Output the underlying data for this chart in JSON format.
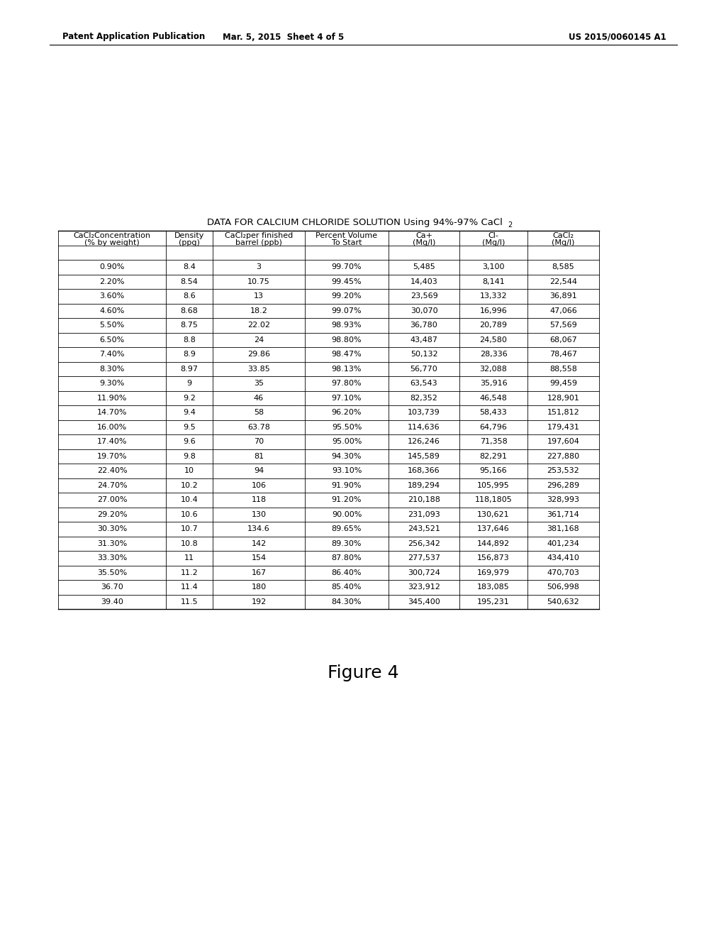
{
  "header_left": "Patent Application Publication",
  "header_mid": "Mar. 5, 2015  Sheet 4 of 5",
  "header_right": "US 2015/0060145 A1",
  "table_title_main": "DATA FOR CALCIUM CHLORIDE SOLUTION Using 94%-97% CaCl",
  "table_title_sub": "2",
  "figure_label": "Figure 4",
  "col_headers_line1": [
    "CaCl₂Concentration",
    "Density",
    "CaCl₂per finished",
    "Percent Volume",
    "Ca+",
    "Cl-",
    "CaCl₂"
  ],
  "col_headers_line2": [
    "(% by weight)",
    "(ppg)",
    "barrel (ppb)",
    "To Start",
    "(Mg/l)",
    "(Mg/l)",
    "(Mg/l)"
  ],
  "rows": [
    [
      "0.90%",
      "8.4",
      "3",
      "99.70%",
      "5,485",
      "3,100",
      "8,585"
    ],
    [
      "2.20%",
      "8.54",
      "10.75",
      "99.45%",
      "14,403",
      "8,141",
      "22,544"
    ],
    [
      "3.60%",
      "8.6",
      "13",
      "99.20%",
      "23,569",
      "13,332",
      "36,891"
    ],
    [
      "4.60%",
      "8.68",
      "18.2",
      "99.07%",
      "30,070",
      "16,996",
      "47,066"
    ],
    [
      "5.50%",
      "8.75",
      "22.02",
      "98.93%",
      "36,780",
      "20,789",
      "57,569"
    ],
    [
      "6.50%",
      "8.8",
      "24",
      "98.80%",
      "43,487",
      "24,580",
      "68,067"
    ],
    [
      "7.40%",
      "8.9",
      "29.86",
      "98.47%",
      "50,132",
      "28,336",
      "78,467"
    ],
    [
      "8.30%",
      "8.97",
      "33.85",
      "98.13%",
      "56,770",
      "32,088",
      "88,558"
    ],
    [
      "9.30%",
      "9",
      "35",
      "97.80%",
      "63,543",
      "35,916",
      "99,459"
    ],
    [
      "11.90%",
      "9.2",
      "46",
      "97.10%",
      "82,352",
      "46,548",
      "128,901"
    ],
    [
      "14.70%",
      "9.4",
      "58",
      "96.20%",
      "103,739",
      "58,433",
      "151,812"
    ],
    [
      "16.00%",
      "9.5",
      "63.78",
      "95.50%",
      "114,636",
      "64,796",
      "179,431"
    ],
    [
      "17.40%",
      "9.6",
      "70",
      "95.00%",
      "126,246",
      "71,358",
      "197,604"
    ],
    [
      "19.70%",
      "9.8",
      "81",
      "94.30%",
      "145,589",
      "82,291",
      "227,880"
    ],
    [
      "22.40%",
      "10",
      "94",
      "93.10%",
      "168,366",
      "95,166",
      "253,532"
    ],
    [
      "24.70%",
      "10.2",
      "106",
      "91.90%",
      "189,294",
      "105,995",
      "296,289"
    ],
    [
      "27.00%",
      "10.4",
      "118",
      "91.20%",
      "210,188",
      "118,1805",
      "328,993"
    ],
    [
      "29.20%",
      "10.6",
      "130",
      "90.00%",
      "231,093",
      "130,621",
      "361,714"
    ],
    [
      "30.30%",
      "10.7",
      "134.6",
      "89.65%",
      "243,521",
      "137,646",
      "381,168"
    ],
    [
      "31.30%",
      "10.8",
      "142",
      "89.30%",
      "256,342",
      "144,892",
      "401,234"
    ],
    [
      "33.30%",
      "11",
      "154",
      "87.80%",
      "277,537",
      "156,873",
      "434,410"
    ],
    [
      "35.50%",
      "11.2",
      "167",
      "86.40%",
      "300,724",
      "169,979",
      "470,703"
    ],
    [
      "36.70",
      "11.4",
      "180",
      "85.40%",
      "323,912",
      "183,085",
      "506,998"
    ],
    [
      "39.40",
      "11.5",
      "192",
      "84.30%",
      "345,400",
      "195,231",
      "540,632"
    ]
  ],
  "background_color": "#ffffff",
  "text_color": "#000000",
  "line_color": "#000000",
  "header_fontsize": 8.5,
  "table_fontsize": 8.0,
  "col_header_fontsize": 8.0,
  "title_fontsize": 9.5,
  "figure_label_fontsize": 18
}
